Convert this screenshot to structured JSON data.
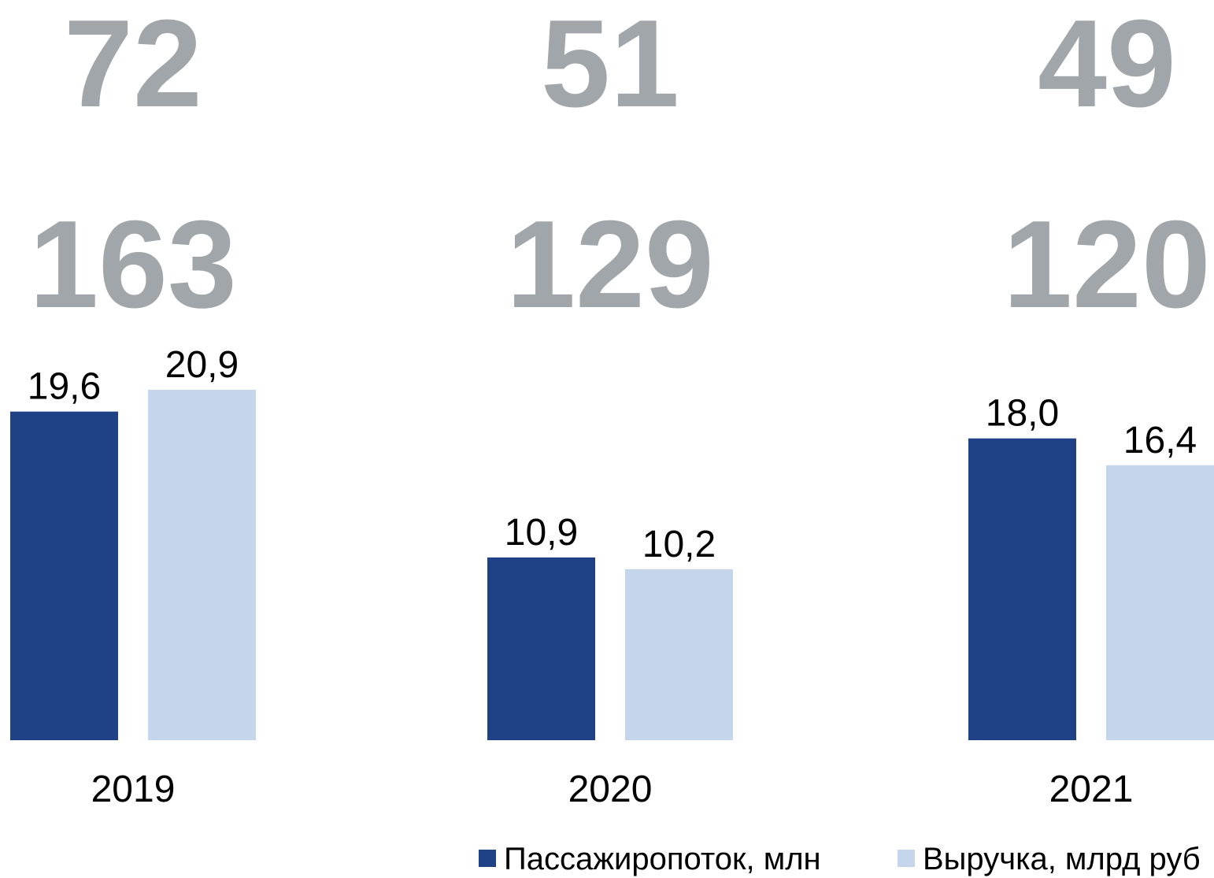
{
  "chart_data": {
    "type": "bar",
    "categories": [
      "2019",
      "2020",
      "2021"
    ],
    "annotations": [
      {
        "values": [
          72,
          51,
          49
        ]
      },
      {
        "values": [
          163,
          129,
          120
        ]
      }
    ],
    "series": [
      {
        "name": "Пассажиропоток, млн",
        "color": "#1f4287",
        "values": [
          19.6,
          10.9,
          18.0
        ],
        "value_labels": [
          "19,6",
          "10,9",
          "18,0"
        ]
      },
      {
        "name": "Выручка, млрд руб",
        "color": "#c5d5ec",
        "values": [
          20.9,
          10.2,
          16.4
        ],
        "value_labels": [
          "20,9",
          "10,2",
          "16,4"
        ]
      }
    ]
  }
}
